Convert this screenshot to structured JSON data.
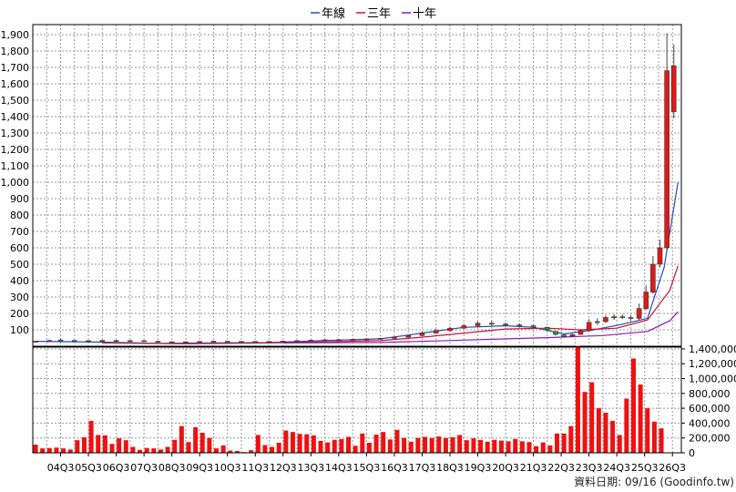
{
  "legend": [
    {
      "label": "年線",
      "color": "#1f4fb5"
    },
    {
      "label": "三年",
      "color": "#d0103a"
    },
    {
      "label": "十年",
      "color": "#8a1bb8"
    }
  ],
  "footer": "資料日期: 09/16 (Goodinfo.tw)",
  "colors": {
    "bar": "#ee1111",
    "candle_up": "#e21818",
    "candle_down": "#20a020",
    "wick": "#444444",
    "frame": "#000000",
    "grid": "#9a9a9a"
  },
  "chart_data": [
    {
      "type": "candlestick",
      "title": "",
      "ylim": [
        0,
        1950
      ],
      "y_ticks": [
        100,
        200,
        300,
        400,
        500,
        600,
        700,
        800,
        900,
        1000,
        1100,
        1200,
        1300,
        1400,
        1500,
        1600,
        1700,
        1800,
        1900
      ],
      "y_tick_labels": [
        "100",
        "200",
        "300",
        "400",
        "500",
        "600",
        "700",
        "800",
        "900",
        "1,000",
        "1,100",
        "1,200",
        "1,300",
        "1,400",
        "1,500",
        "1,600",
        "1,700",
        "1,800",
        "1,900"
      ],
      "x_tick_labels": [
        "04Q3",
        "05Q3",
        "06Q3",
        "07Q3",
        "08Q3",
        "09Q3",
        "10Q3",
        "11Q3",
        "12Q3",
        "13Q3",
        "14Q3",
        "15Q3",
        "16Q3",
        "17Q3",
        "18Q3",
        "19Q3",
        "20Q3",
        "21Q3",
        "22Q3",
        "23Q3",
        "24Q3",
        "25Q3",
        "26Q3"
      ],
      "grid": true,
      "legend_position": "top-center",
      "note": "one candle per month; open/close/high/low in price units",
      "series_lines": {
        "年線": [
          [
            2003.6,
            30
          ],
          [
            2006,
            25
          ],
          [
            2008,
            18
          ],
          [
            2010,
            20
          ],
          [
            2012,
            22
          ],
          [
            2014,
            35
          ],
          [
            2016,
            45
          ],
          [
            2017,
            68
          ],
          [
            2018,
            92
          ],
          [
            2019,
            115
          ],
          [
            2020.5,
            125
          ],
          [
            2021.5,
            115
          ],
          [
            2022.6,
            75
          ],
          [
            2023.6,
            98
          ],
          [
            2024.6,
            130
          ],
          [
            2025.6,
            170
          ],
          [
            2026.2,
            480
          ],
          [
            2026.7,
            1000
          ]
        ],
        "三年": [
          [
            2006,
            20
          ],
          [
            2009,
            15
          ],
          [
            2012,
            20
          ],
          [
            2014,
            27
          ],
          [
            2016,
            34
          ],
          [
            2017.5,
            55
          ],
          [
            2019,
            80
          ],
          [
            2020.5,
            105
          ],
          [
            2022,
            110
          ],
          [
            2023.2,
            100
          ],
          [
            2024.5,
            110
          ],
          [
            2025.6,
            160
          ],
          [
            2026.4,
            340
          ],
          [
            2026.7,
            490
          ]
        ],
        "十年": [
          [
            2012.5,
            20
          ],
          [
            2016,
            23
          ],
          [
            2018,
            32
          ],
          [
            2020,
            42
          ],
          [
            2022,
            52
          ],
          [
            2024,
            65
          ],
          [
            2025.6,
            90
          ],
          [
            2026.4,
            155
          ],
          [
            2026.7,
            210
          ]
        ]
      },
      "candles": [
        {
          "t": 2003.6,
          "o": 28,
          "c": 30,
          "h": 32,
          "l": 26
        },
        {
          "t": 2004.1,
          "o": 32,
          "c": 35,
          "h": 40,
          "l": 30
        },
        {
          "t": 2004.5,
          "o": 38,
          "c": 36,
          "h": 46,
          "l": 32
        },
        {
          "t": 2005.0,
          "o": 35,
          "c": 33,
          "h": 38,
          "l": 30
        },
        {
          "t": 2005.5,
          "o": 32,
          "c": 34,
          "h": 36,
          "l": 30
        },
        {
          "t": 2006.0,
          "o": 33,
          "c": 35,
          "h": 38,
          "l": 31
        },
        {
          "t": 2006.5,
          "o": 35,
          "c": 33,
          "h": 38,
          "l": 30
        },
        {
          "t": 2007.0,
          "o": 32,
          "c": 34,
          "h": 37,
          "l": 30
        },
        {
          "t": 2007.5,
          "o": 34,
          "c": 32,
          "h": 36,
          "l": 29
        },
        {
          "t": 2008.0,
          "o": 30,
          "c": 28,
          "h": 33,
          "l": 25
        },
        {
          "t": 2008.5,
          "o": 27,
          "c": 26,
          "h": 29,
          "l": 23
        },
        {
          "t": 2009.0,
          "o": 25,
          "c": 27,
          "h": 29,
          "l": 23
        },
        {
          "t": 2009.5,
          "o": 27,
          "c": 29,
          "h": 31,
          "l": 25
        },
        {
          "t": 2010.0,
          "o": 29,
          "c": 31,
          "h": 33,
          "l": 27
        },
        {
          "t": 2010.5,
          "o": 30,
          "c": 28,
          "h": 32,
          "l": 26
        },
        {
          "t": 2011.0,
          "o": 28,
          "c": 29,
          "h": 31,
          "l": 26
        },
        {
          "t": 2011.5,
          "o": 29,
          "c": 27,
          "h": 31,
          "l": 25
        },
        {
          "t": 2012.0,
          "o": 27,
          "c": 29,
          "h": 31,
          "l": 25
        },
        {
          "t": 2012.5,
          "o": 29,
          "c": 31,
          "h": 33,
          "l": 27
        },
        {
          "t": 2013.0,
          "o": 31,
          "c": 34,
          "h": 37,
          "l": 29
        },
        {
          "t": 2013.5,
          "o": 34,
          "c": 37,
          "h": 40,
          "l": 32
        },
        {
          "t": 2014.0,
          "o": 37,
          "c": 39,
          "h": 42,
          "l": 35
        },
        {
          "t": 2014.5,
          "o": 38,
          "c": 40,
          "h": 43,
          "l": 35
        },
        {
          "t": 2015.0,
          "o": 40,
          "c": 42,
          "h": 45,
          "l": 38
        },
        {
          "t": 2015.5,
          "o": 42,
          "c": 44,
          "h": 47,
          "l": 40
        },
        {
          "t": 2016.0,
          "o": 44,
          "c": 48,
          "h": 52,
          "l": 42
        },
        {
          "t": 2016.5,
          "o": 48,
          "c": 55,
          "h": 60,
          "l": 46
        },
        {
          "t": 2017.0,
          "o": 55,
          "c": 65,
          "h": 70,
          "l": 53
        },
        {
          "t": 2017.5,
          "o": 65,
          "c": 80,
          "h": 90,
          "l": 62
        },
        {
          "t": 2018.0,
          "o": 80,
          "c": 95,
          "h": 105,
          "l": 78
        },
        {
          "t": 2018.5,
          "o": 95,
          "c": 110,
          "h": 120,
          "l": 90
        },
        {
          "t": 2019.0,
          "o": 110,
          "c": 125,
          "h": 135,
          "l": 105
        },
        {
          "t": 2019.5,
          "o": 125,
          "c": 140,
          "h": 150,
          "l": 120
        },
        {
          "t": 2020.0,
          "o": 140,
          "c": 135,
          "h": 155,
          "l": 125
        },
        {
          "t": 2020.5,
          "o": 135,
          "c": 130,
          "h": 145,
          "l": 120
        },
        {
          "t": 2021.0,
          "o": 130,
          "c": 125,
          "h": 140,
          "l": 115
        },
        {
          "t": 2021.5,
          "o": 125,
          "c": 115,
          "h": 130,
          "l": 105
        },
        {
          "t": 2022.0,
          "o": 115,
          "c": 100,
          "h": 120,
          "l": 90
        },
        {
          "t": 2022.3,
          "o": 90,
          "c": 72,
          "h": 95,
          "l": 65
        },
        {
          "t": 2022.6,
          "o": 68,
          "c": 60,
          "h": 75,
          "l": 52
        },
        {
          "t": 2022.9,
          "o": 60,
          "c": 70,
          "h": 78,
          "l": 55
        },
        {
          "t": 2023.2,
          "o": 72,
          "c": 95,
          "h": 105,
          "l": 70
        },
        {
          "t": 2023.5,
          "o": 95,
          "c": 145,
          "h": 165,
          "l": 90
        },
        {
          "t": 2023.8,
          "o": 145,
          "c": 150,
          "h": 170,
          "l": 130
        },
        {
          "t": 2024.1,
          "o": 150,
          "c": 175,
          "h": 190,
          "l": 140
        },
        {
          "t": 2024.4,
          "o": 175,
          "c": 180,
          "h": 195,
          "l": 160
        },
        {
          "t": 2024.7,
          "o": 180,
          "c": 175,
          "h": 195,
          "l": 165
        },
        {
          "t": 2025.0,
          "o": 175,
          "c": 170,
          "h": 190,
          "l": 155
        },
        {
          "t": 2025.3,
          "o": 170,
          "c": 230,
          "h": 260,
          "l": 160
        },
        {
          "t": 2025.55,
          "o": 230,
          "c": 330,
          "h": 370,
          "l": 220
        },
        {
          "t": 2025.8,
          "o": 330,
          "c": 500,
          "h": 550,
          "l": 320
        },
        {
          "t": 2026.05,
          "o": 500,
          "c": 600,
          "h": 650,
          "l": 480
        },
        {
          "t": 2026.3,
          "o": 600,
          "c": 1680,
          "h": 1910,
          "l": 580
        },
        {
          "t": 2026.55,
          "o": 1430,
          "c": 1710,
          "h": 1840,
          "l": 1390
        }
      ]
    },
    {
      "type": "bar",
      "title": "",
      "ylim": [
        0,
        1400000
      ],
      "y_ticks": [
        0,
        200000,
        400000,
        600000,
        800000,
        1000000,
        1200000,
        1400000
      ],
      "y_tick_labels": [
        "0",
        "200,000",
        "400,000",
        "600,000",
        "800,000",
        "1,000,000",
        "1,200,000",
        "1,400,000"
      ],
      "note": "volume per month",
      "points": [
        [
          2003.6,
          110000
        ],
        [
          2003.85,
          60000
        ],
        [
          2004.1,
          65000
        ],
        [
          2004.35,
          70000
        ],
        [
          2004.6,
          60000
        ],
        [
          2004.85,
          45000
        ],
        [
          2005.1,
          170000
        ],
        [
          2005.35,
          210000
        ],
        [
          2005.6,
          430000
        ],
        [
          2005.85,
          240000
        ],
        [
          2006.1,
          235000
        ],
        [
          2006.35,
          120000
        ],
        [
          2006.6,
          195000
        ],
        [
          2006.85,
          170000
        ],
        [
          2007.1,
          80000
        ],
        [
          2007.35,
          40000
        ],
        [
          2007.6,
          65000
        ],
        [
          2007.85,
          60000
        ],
        [
          2008.1,
          45000
        ],
        [
          2008.35,
          80000
        ],
        [
          2008.6,
          175000
        ],
        [
          2008.85,
          360000
        ],
        [
          2009.1,
          145000
        ],
        [
          2009.35,
          345000
        ],
        [
          2009.6,
          270000
        ],
        [
          2009.85,
          200000
        ],
        [
          2010.1,
          60000
        ],
        [
          2010.35,
          100000
        ],
        [
          2010.6,
          30000
        ],
        [
          2010.85,
          25000
        ],
        [
          2011.1,
          10000
        ],
        [
          2011.35,
          35000
        ],
        [
          2011.6,
          240000
        ],
        [
          2011.85,
          105000
        ],
        [
          2012.1,
          80000
        ],
        [
          2012.35,
          135000
        ],
        [
          2012.6,
          300000
        ],
        [
          2012.85,
          280000
        ],
        [
          2013.1,
          255000
        ],
        [
          2013.35,
          250000
        ],
        [
          2013.6,
          235000
        ],
        [
          2013.85,
          160000
        ],
        [
          2014.1,
          140000
        ],
        [
          2014.35,
          175000
        ],
        [
          2014.6,
          185000
        ],
        [
          2014.85,
          215000
        ],
        [
          2015.1,
          95000
        ],
        [
          2015.35,
          260000
        ],
        [
          2015.6,
          135000
        ],
        [
          2015.85,
          245000
        ],
        [
          2016.1,
          280000
        ],
        [
          2016.35,
          180000
        ],
        [
          2016.6,
          310000
        ],
        [
          2016.85,
          200000
        ],
        [
          2017.1,
          150000
        ],
        [
          2017.35,
          200000
        ],
        [
          2017.6,
          215000
        ],
        [
          2017.85,
          200000
        ],
        [
          2018.1,
          220000
        ],
        [
          2018.35,
          200000
        ],
        [
          2018.6,
          210000
        ],
        [
          2018.85,
          240000
        ],
        [
          2019.1,
          170000
        ],
        [
          2019.35,
          195000
        ],
        [
          2019.6,
          175000
        ],
        [
          2019.85,
          150000
        ],
        [
          2020.1,
          175000
        ],
        [
          2020.35,
          165000
        ],
        [
          2020.6,
          155000
        ],
        [
          2020.85,
          185000
        ],
        [
          2021.1,
          155000
        ],
        [
          2021.35,
          145000
        ],
        [
          2021.6,
          90000
        ],
        [
          2021.85,
          140000
        ],
        [
          2022.1,
          100000
        ],
        [
          2022.35,
          260000
        ],
        [
          2022.6,
          260000
        ],
        [
          2022.85,
          360000
        ],
        [
          2023.1,
          1440000
        ],
        [
          2023.35,
          820000
        ],
        [
          2023.6,
          950000
        ],
        [
          2023.85,
          600000
        ],
        [
          2024.1,
          540000
        ],
        [
          2024.35,
          430000
        ],
        [
          2024.6,
          240000
        ],
        [
          2024.85,
          730000
        ],
        [
          2025.1,
          1270000
        ],
        [
          2025.35,
          920000
        ],
        [
          2025.6,
          600000
        ],
        [
          2025.85,
          420000
        ],
        [
          2026.1,
          330000
        ]
      ]
    }
  ]
}
